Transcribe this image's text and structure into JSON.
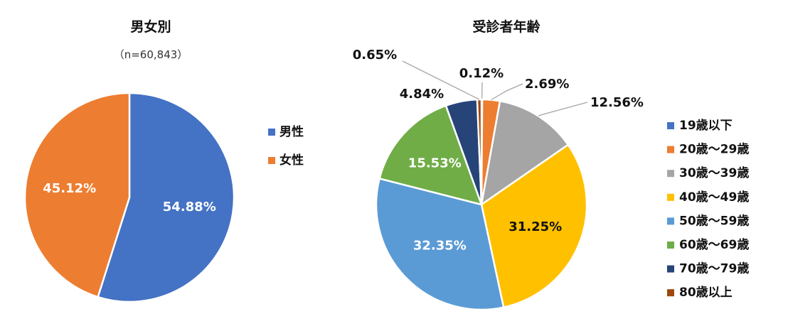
{
  "chart_data": [
    {
      "type": "pie",
      "title": "男女別",
      "subtitle": "（n=60,843）",
      "slices": [
        {
          "name": "男性",
          "value": 54.88,
          "label": "54.88%",
          "color": "#4472c4"
        },
        {
          "name": "女性",
          "value": 45.12,
          "label": "45.12%",
          "color": "#ed7d31"
        }
      ],
      "legend_position": "right"
    },
    {
      "type": "pie",
      "title": "受診者年齢",
      "slices": [
        {
          "name": "19歳以下",
          "value": 0.12,
          "label": "0.12%",
          "color": "#4472c4"
        },
        {
          "name": "20歳～29歳",
          "value": 2.69,
          "label": "2.69%",
          "color": "#ed7d31"
        },
        {
          "name": "30歳～39歳",
          "value": 12.56,
          "label": "12.56%",
          "color": "#a5a5a5"
        },
        {
          "name": "40歳～49歳",
          "value": 31.25,
          "label": "31.25%",
          "color": "#ffc000"
        },
        {
          "name": "50歳～59歳",
          "value": 32.35,
          "label": "32.35%",
          "color": "#5b9bd5"
        },
        {
          "name": "60歳～69歳",
          "value": 15.53,
          "label": "15.53%",
          "color": "#70ad47"
        },
        {
          "name": "70歳～79歳",
          "value": 4.84,
          "label": "4.84%",
          "color": "#264478"
        },
        {
          "name": "80歳以上",
          "value": 0.65,
          "label": "0.65%",
          "color": "#9e480e"
        }
      ],
      "legend_position": "right"
    }
  ]
}
